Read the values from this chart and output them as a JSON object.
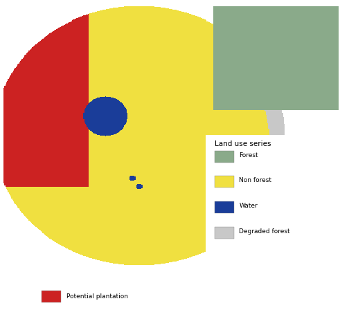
{
  "legend_title": "Land use series",
  "legend_items": [
    {
      "label": "Forest",
      "color": "#8aaa8a"
    },
    {
      "label": "Non forest",
      "color": "#f0e040"
    },
    {
      "label": "Water",
      "color": "#1a3d99"
    },
    {
      "label": "Degraded forest",
      "color": "#c8c8c8"
    }
  ],
  "bottom_label": "Potential plantation",
  "bottom_color": "#cc2222",
  "background_color": "#ffffff",
  "fig_width": 5.04,
  "fig_height": 4.48,
  "dpi": 100,
  "legend_title_fontsize": 7.5,
  "legend_label_fontsize": 6.5,
  "map_colors": {
    "forest": [
      138,
      170,
      138
    ],
    "non_forest": [
      240,
      224,
      64
    ],
    "water": [
      26,
      61,
      153
    ],
    "degraded": [
      200,
      200,
      200
    ],
    "plantation": [
      204,
      34,
      34
    ],
    "bg": [
      255,
      255,
      255
    ]
  }
}
